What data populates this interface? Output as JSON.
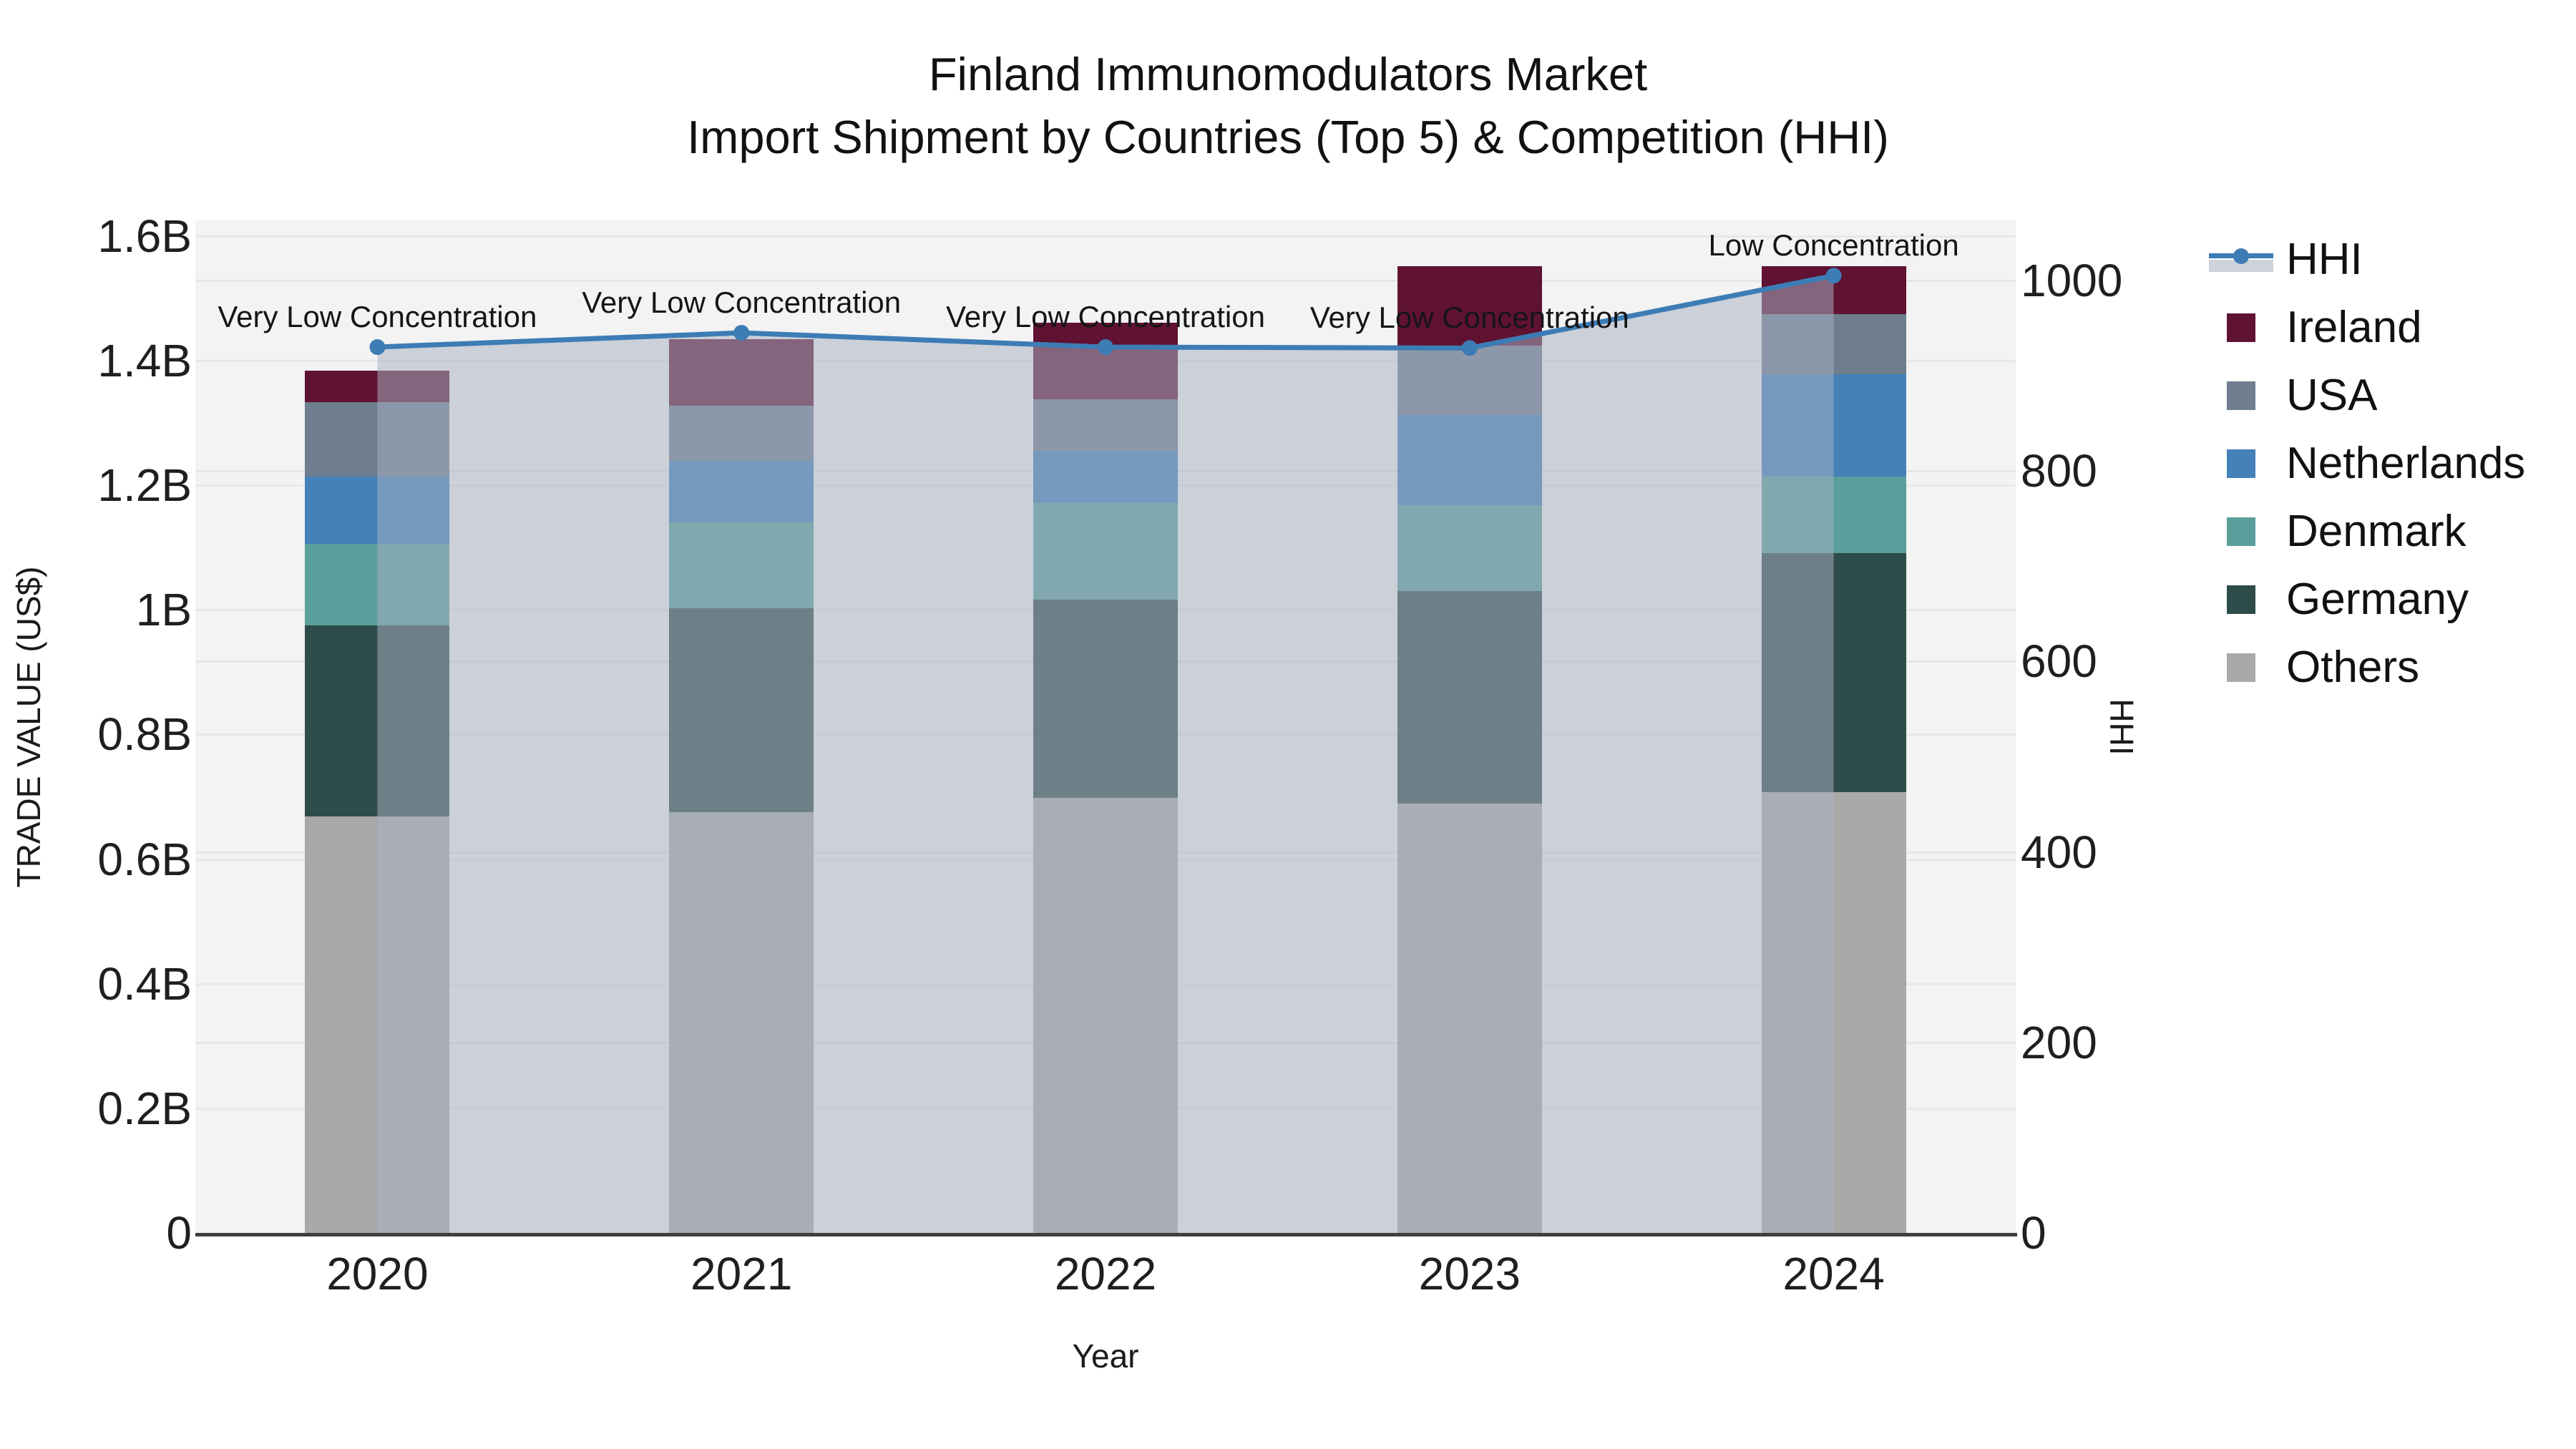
{
  "title": {
    "line1": "Finland Immunomodulators Market",
    "line2": "Import Shipment by Countries (Top 5) & Competition (HHI)"
  },
  "axes": {
    "x": {
      "title": "Year",
      "categories": [
        "2020",
        "2021",
        "2022",
        "2023",
        "2024"
      ]
    },
    "y_left": {
      "title": "TRADE VALUE (US$)",
      "ticks": [
        {
          "label": "0",
          "value": 0
        },
        {
          "label": "0.2B",
          "value": 0.2
        },
        {
          "label": "0.4B",
          "value": 0.4
        },
        {
          "label": "0.6B",
          "value": 0.6
        },
        {
          "label": "0.8B",
          "value": 0.8
        },
        {
          "label": "1B",
          "value": 1.0
        },
        {
          "label": "1.2B",
          "value": 1.2
        },
        {
          "label": "1.4B",
          "value": 1.4
        },
        {
          "label": "1.6B",
          "value": 1.6
        }
      ]
    },
    "y_right": {
      "title": "HHI",
      "ticks": [
        {
          "label": "0",
          "value": 0
        },
        {
          "label": "200",
          "value": 200
        },
        {
          "label": "400",
          "value": 400
        },
        {
          "label": "600",
          "value": 600
        },
        {
          "label": "800",
          "value": 800
        },
        {
          "label": "1000",
          "value": 1000
        }
      ]
    }
  },
  "annotations": [
    {
      "label": "Very Low Concentration",
      "year": "2020"
    },
    {
      "label": "Very Low Concentration",
      "year": "2021"
    },
    {
      "label": "Very Low Concentration",
      "year": "2022"
    },
    {
      "label": "Very Low Concentration",
      "year": "2023"
    },
    {
      "label": "Low Concentration",
      "year": "2024"
    }
  ],
  "legend": {
    "items": [
      {
        "label": "HHI",
        "type": "line",
        "color": "#3d7cb5"
      },
      {
        "label": "Ireland",
        "type": "swatch",
        "color": "#601233"
      },
      {
        "label": "USA",
        "type": "swatch",
        "color": "#6f7e8e"
      },
      {
        "label": "Netherlands",
        "type": "swatch",
        "color": "#4381b8"
      },
      {
        "label": "Denmark",
        "type": "swatch",
        "color": "#5b9f9c"
      },
      {
        "label": "Germany",
        "type": "swatch",
        "color": "#2e4c49"
      },
      {
        "label": "Others",
        "type": "swatch",
        "color": "#a9a9a9"
      }
    ]
  },
  "chart_data": {
    "type": "bar+line",
    "categories": [
      "2020",
      "2021",
      "2022",
      "2023",
      "2024"
    ],
    "bar_unit": "billion US$",
    "stack_bottom_to_top": [
      "Others",
      "Germany",
      "Denmark",
      "Netherlands",
      "USA",
      "Ireland"
    ],
    "series": [
      {
        "name": "Others",
        "type": "bar",
        "axis": "left",
        "color": "#a9a9a9",
        "values": [
          0.668,
          0.675,
          0.698,
          0.689,
          0.707
        ]
      },
      {
        "name": "Germany",
        "type": "bar",
        "axis": "left",
        "color": "#2e4c49",
        "values": [
          0.307,
          0.327,
          0.318,
          0.341,
          0.384
        ]
      },
      {
        "name": "Denmark",
        "type": "bar",
        "axis": "left",
        "color": "#5b9f9c",
        "values": [
          0.131,
          0.138,
          0.155,
          0.138,
          0.123
        ]
      },
      {
        "name": "Netherlands",
        "type": "bar",
        "axis": "left",
        "color": "#4381b8",
        "values": [
          0.108,
          0.099,
          0.084,
          0.145,
          0.164
        ]
      },
      {
        "name": "USA",
        "type": "bar",
        "axis": "left",
        "color": "#6f7e8e",
        "values": [
          0.119,
          0.089,
          0.083,
          0.111,
          0.097
        ]
      },
      {
        "name": "Ireland",
        "type": "bar",
        "axis": "left",
        "color": "#601233",
        "values": [
          0.051,
          0.106,
          0.123,
          0.127,
          0.077
        ]
      }
    ],
    "line_series": {
      "name": "HHI",
      "type": "line",
      "axis": "right",
      "color": "#3d7cb5",
      "area_fill": "rgba(167,177,193,0.52)",
      "values": [
        930,
        945,
        930,
        929,
        1005
      ]
    },
    "ylim_left": [
      0,
      1.625
    ],
    "ylim_right": [
      0,
      1063
    ],
    "grid": true,
    "legend_position": "right"
  }
}
